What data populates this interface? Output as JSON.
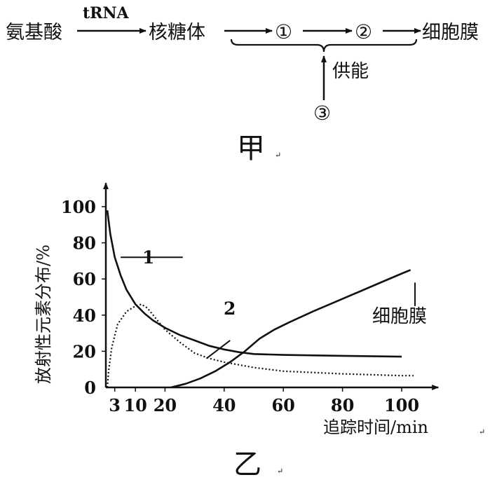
{
  "diagram_a": {
    "nodes": {
      "amino_acid": "氨基酸",
      "trna": "tRNA",
      "ribosome": "核糖体",
      "step1": "①",
      "step2": "②",
      "membrane": "细胞膜",
      "energy": "供能",
      "step3": "③"
    },
    "caption": "甲",
    "caption_mark": "↵"
  },
  "chart_data": {
    "type": "line",
    "caption": "乙",
    "caption_mark": "↵",
    "xlabel": "追踪时间/min",
    "ylabel": "放射性元素分布/%",
    "xlim": [
      0,
      110
    ],
    "ylim": [
      0,
      110
    ],
    "x_ticks": [
      3,
      10,
      20,
      40,
      60,
      80,
      100
    ],
    "y_ticks": [
      0,
      20,
      40,
      60,
      80,
      100
    ],
    "xlabel_mark": "↵",
    "series": [
      {
        "name": "1",
        "style": "solid",
        "points": [
          [
            0.5,
            98
          ],
          [
            1.5,
            85
          ],
          [
            3,
            72
          ],
          [
            5,
            62
          ],
          [
            7,
            54
          ],
          [
            10,
            46
          ],
          [
            13,
            41
          ],
          [
            16,
            37
          ],
          [
            20,
            33
          ],
          [
            25,
            29
          ],
          [
            30,
            26
          ],
          [
            35,
            23
          ],
          [
            40,
            21
          ],
          [
            45,
            19.5
          ],
          [
            50,
            18.5
          ],
          [
            60,
            18
          ],
          [
            80,
            17.5
          ],
          [
            100,
            17
          ]
        ]
      },
      {
        "name": "2",
        "style": "dotted",
        "points": [
          [
            0.5,
            0
          ],
          [
            1,
            10
          ],
          [
            2,
            22
          ],
          [
            4,
            35
          ],
          [
            7,
            42
          ],
          [
            10,
            45
          ],
          [
            12,
            46
          ],
          [
            14,
            44
          ],
          [
            17,
            38
          ],
          [
            20,
            32
          ],
          [
            25,
            25
          ],
          [
            30,
            19
          ],
          [
            35,
            16
          ],
          [
            40,
            14
          ],
          [
            50,
            11
          ],
          [
            60,
            9
          ],
          [
            80,
            7.5
          ],
          [
            100,
            6.5
          ],
          [
            104,
            6.5
          ]
        ]
      },
      {
        "name": "细胞膜",
        "style": "solid",
        "points": [
          [
            22,
            0
          ],
          [
            27,
            2
          ],
          [
            32,
            5
          ],
          [
            37,
            9
          ],
          [
            42,
            14
          ],
          [
            47,
            20
          ],
          [
            52,
            27
          ],
          [
            57,
            32
          ],
          [
            62,
            36
          ],
          [
            70,
            42
          ],
          [
            80,
            49
          ],
          [
            90,
            56
          ],
          [
            100,
            63
          ],
          [
            103,
            65
          ]
        ]
      }
    ]
  }
}
